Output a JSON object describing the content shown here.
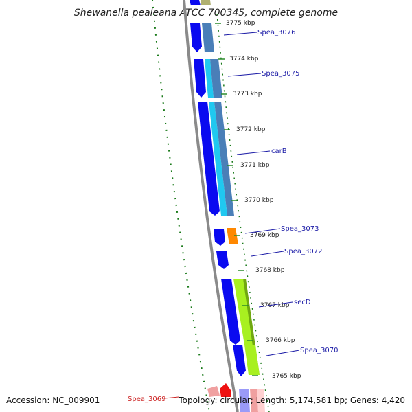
{
  "title": "Shewanella pealeana ATCC 700345, complete genome",
  "footer": {
    "accession": "Accession: NC_009901",
    "topology": "Topology: circular; Length: 5,174,581 bp; Genes: 4,420"
  },
  "ticks": [
    {
      "label": "3775 kbp"
    },
    {
      "label": "3774 kbp"
    },
    {
      "label": "3773 kbp"
    },
    {
      "label": "3772 kbp"
    },
    {
      "label": "3771 kbp"
    },
    {
      "label": "3770 kbp"
    },
    {
      "label": "3769 kbp"
    },
    {
      "label": "3768 kbp"
    },
    {
      "label": "3767 kbp"
    },
    {
      "label": "3766 kbp"
    },
    {
      "label": "3765 kbp"
    }
  ],
  "genes": [
    {
      "label": "Spea_3076"
    },
    {
      "label": "Spea_3075"
    },
    {
      "label": "carB"
    },
    {
      "label": "Spea_3073"
    },
    {
      "label": "Spea_3072"
    },
    {
      "label": "secD"
    },
    {
      "label": "Spea_3070"
    },
    {
      "label": "Spea_3069"
    }
  ],
  "colors": {
    "cds": "#0a0af0",
    "gene_blue": "#4a7fb8",
    "cyan": "#20c8f0",
    "orange": "#ff8800",
    "lime": "#a8f020",
    "backbone": "#8a8a8a",
    "dots": "#1a7a1a",
    "tick": "#2a8a2a",
    "red": "#ee1111",
    "pink": "#f0a0a0"
  }
}
